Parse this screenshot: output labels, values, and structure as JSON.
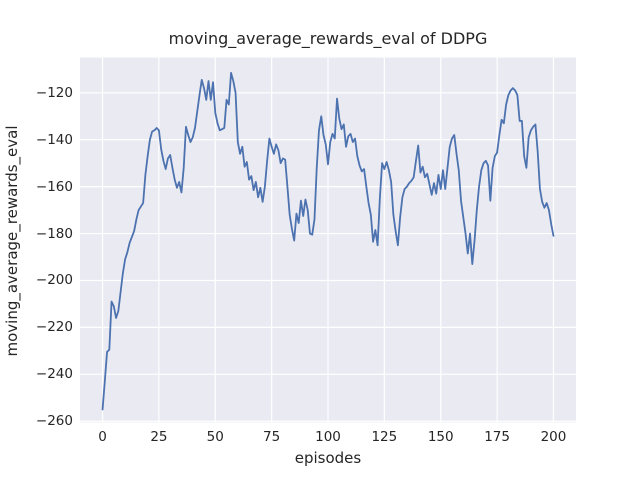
{
  "figure": {
    "title": "moving_average_rewards_eval of DDPG",
    "xlabel": "episodes",
    "ylabel": "moving_average_rewards_eval"
  },
  "chart_data": {
    "type": "line",
    "title": "moving_average_rewards_eval of DDPG",
    "xlabel": "episodes",
    "ylabel": "moving_average_rewards_eval",
    "legend": "none",
    "grid": true,
    "style": "seaborn-darkgrid",
    "axes_background": "#EAEAF2",
    "grid_color": "#FFFFFF",
    "line_color": "#4C72B0",
    "text_color": "#262626",
    "xlim": [
      -10,
      210
    ],
    "ylim": [
      -260.5,
      -105
    ],
    "x_ticks": [
      0,
      25,
      50,
      75,
      100,
      125,
      150,
      175,
      200
    ],
    "y_ticks": [
      -120,
      -140,
      -160,
      -180,
      -200,
      -220,
      -240,
      -260
    ],
    "x_start": 0,
    "x_step": 1,
    "series": [
      {
        "name": "moving_average_rewards_eval",
        "values": [
          -255,
          -243,
          -230.5,
          -229.5,
          -209,
          -211,
          -216,
          -213,
          -205,
          -197,
          -191,
          -188,
          -184,
          -181.5,
          -179,
          -174,
          -170,
          -168.5,
          -167,
          -155,
          -147,
          -140,
          -136.5,
          -136,
          -135,
          -136,
          -144,
          -149,
          -152.5,
          -148,
          -146.5,
          -152,
          -157,
          -160.5,
          -158,
          -162.5,
          -152,
          -134.5,
          -138,
          -141,
          -139,
          -135,
          -128,
          -121,
          -114.5,
          -118,
          -123,
          -115,
          -123,
          -115.5,
          -128.5,
          -133,
          -136,
          -135.5,
          -135,
          -123,
          -125,
          -111.5,
          -115,
          -120,
          -141,
          -146,
          -143,
          -151.5,
          -149.5,
          -157,
          -155.5,
          -161.5,
          -158,
          -164.5,
          -160.5,
          -166.5,
          -160,
          -149,
          -139.5,
          -143,
          -146,
          -142,
          -144.5,
          -150,
          -148,
          -148.5,
          -160,
          -172,
          -178,
          -183,
          -171.5,
          -175.5,
          -166,
          -172.5,
          -165.5,
          -170,
          -180,
          -180.5,
          -174,
          -152,
          -136,
          -130,
          -138,
          -142,
          -150.5,
          -141,
          -137.5,
          -139.5,
          -122.5,
          -131,
          -135.5,
          -133.5,
          -143,
          -138.5,
          -137.5,
          -141,
          -139.5,
          -147,
          -151,
          -153.5,
          -152.5,
          -160,
          -167,
          -172,
          -183.5,
          -178.5,
          -185,
          -165,
          -150,
          -152.5,
          -149.5,
          -153,
          -158,
          -172,
          -179,
          -185,
          -173,
          -164.5,
          -161,
          -160,
          -158.5,
          -157.5,
          -156,
          -149,
          -142.5,
          -154,
          -151.5,
          -156,
          -154.5,
          -159,
          -163.5,
          -158.5,
          -163,
          -155,
          -161,
          -153,
          -161,
          -152,
          -143,
          -139.5,
          -138,
          -146,
          -153,
          -166,
          -173,
          -180,
          -188.5,
          -180,
          -193,
          -183,
          -170,
          -160,
          -153,
          -150,
          -149,
          -151,
          -166,
          -152,
          -147,
          -145.5,
          -138,
          -131.5,
          -133,
          -125,
          -121,
          -119,
          -118,
          -119,
          -121,
          -132,
          -132,
          -147,
          -152,
          -139,
          -136,
          -134.5,
          -133.5,
          -145,
          -161,
          -166.5,
          -169,
          -167,
          -170,
          -176,
          -181
        ]
      }
    ]
  }
}
